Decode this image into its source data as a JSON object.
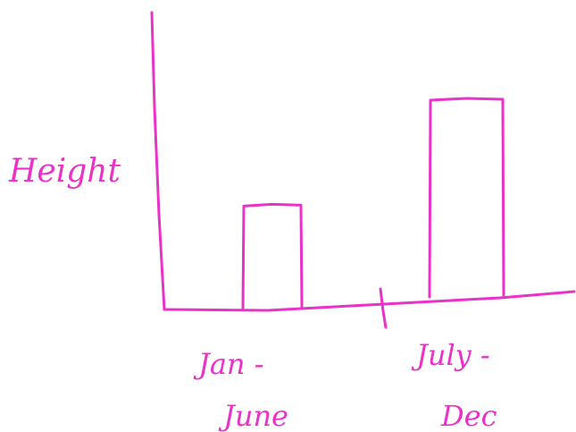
{
  "colors": {
    "ink": "#e832c8",
    "background": "#ffffff"
  },
  "chart_data": {
    "type": "bar",
    "hand_drawn": true,
    "categories": [
      "Jan - June",
      "July - Dec"
    ],
    "category_lines": [
      [
        "Jan -",
        "June"
      ],
      [
        "July -",
        "Dec"
      ]
    ],
    "values": [
      0.53,
      1.0
    ],
    "value_scale": "relative",
    "title": "",
    "xlabel": "",
    "ylabel": "Height",
    "y_tick_labels": false,
    "grid": false,
    "legend": "none"
  }
}
